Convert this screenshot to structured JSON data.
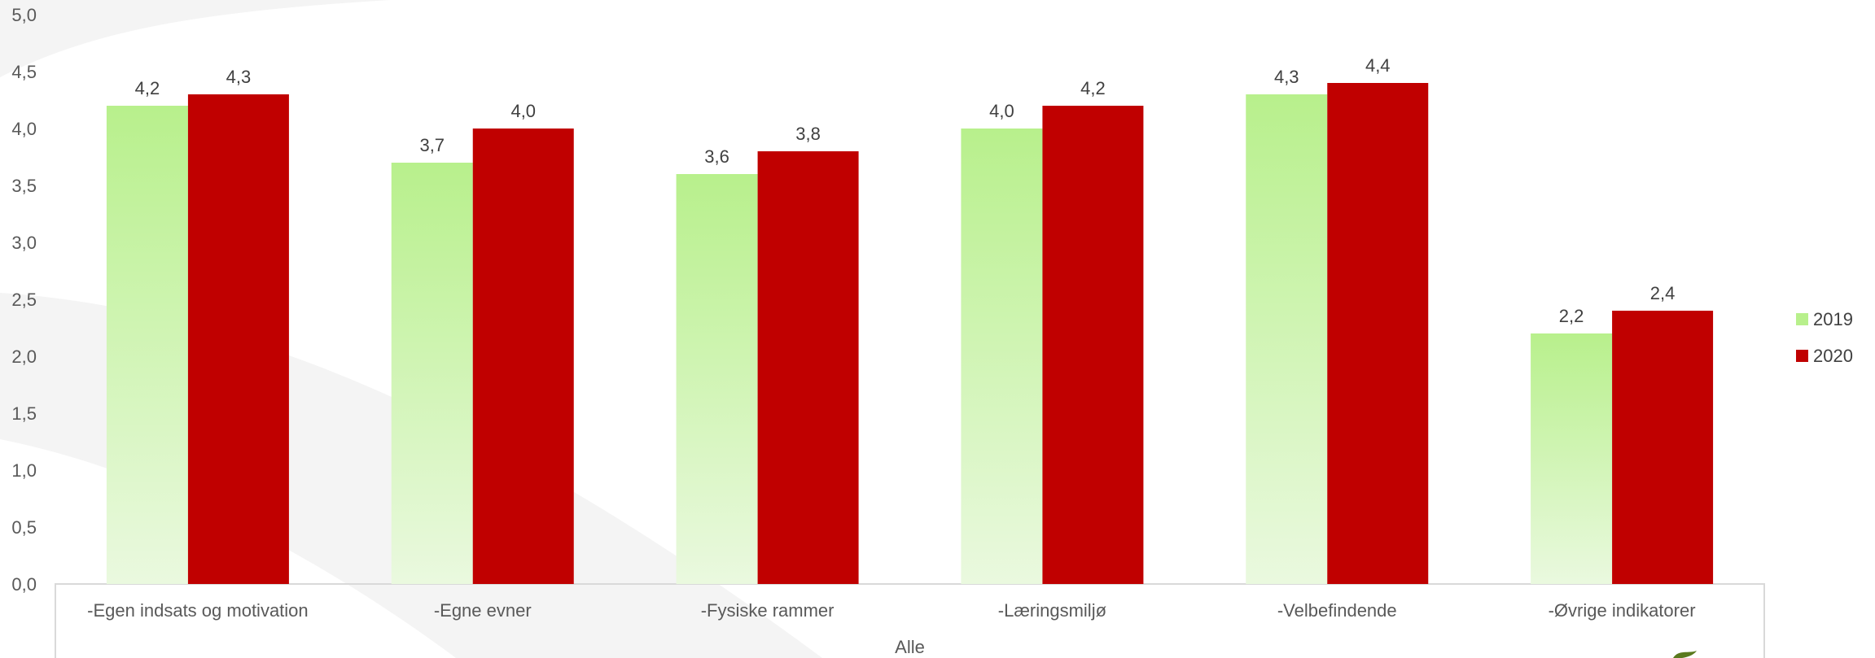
{
  "chart_data": {
    "type": "bar",
    "categories": [
      "-Egen indsats og motivation",
      "-Egne evner",
      "-Fysiske rammer",
      "-Læringsmiljø",
      "-Velbefindende",
      "-Øvrige indikatorer"
    ],
    "series": [
      {
        "name": "2019",
        "values": [
          4.2,
          3.7,
          3.6,
          4.0,
          4.3,
          2.2
        ],
        "labels": [
          "4,2",
          "3,7",
          "3,6",
          "4,0",
          "4,3",
          "2,2"
        ],
        "color": "#b8f08c"
      },
      {
        "name": "2020",
        "values": [
          4.3,
          4.0,
          3.8,
          4.2,
          4.4,
          2.4
        ],
        "labels": [
          "4,3",
          "4,0",
          "3,8",
          "4,2",
          "4,4",
          "2,4"
        ],
        "color": "#c00000"
      }
    ],
    "y_ticks": [
      "0,0",
      "0,5",
      "1,0",
      "1,5",
      "2,0",
      "2,5",
      "3,0",
      "3,5",
      "4,0",
      "4,5",
      "5,0"
    ],
    "ylim": [
      0,
      5
    ],
    "group_label": "Alle",
    "title": "",
    "xlabel": "",
    "ylabel": "",
    "grid": false,
    "legend_position": "right"
  }
}
